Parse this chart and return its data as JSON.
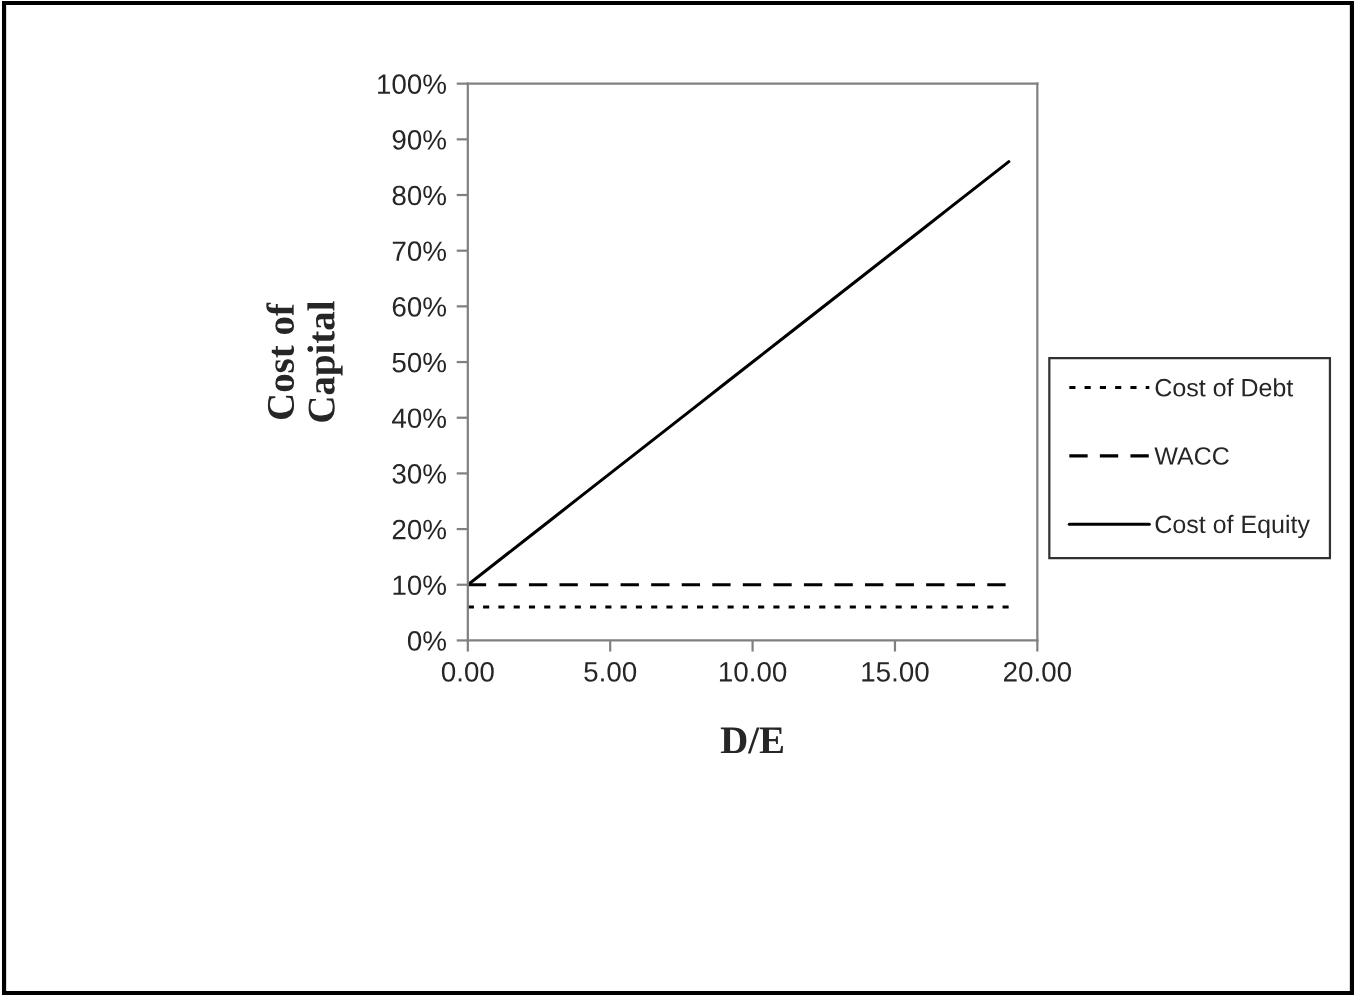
{
  "chart_data": {
    "type": "line",
    "xlabel": "D/E",
    "ylabel": "Cost of\nCapital",
    "xlim": [
      0,
      20
    ],
    "xticks": [
      {
        "value": 0,
        "label": "0.00"
      },
      {
        "value": 5,
        "label": "5.00"
      },
      {
        "value": 10,
        "label": "10.00"
      },
      {
        "value": 15,
        "label": "15.00"
      },
      {
        "value": 20,
        "label": "20.00"
      }
    ],
    "ylim": [
      0,
      100
    ],
    "yticks": [
      {
        "value": 0,
        "label": "0%"
      },
      {
        "value": 10,
        "label": "10%"
      },
      {
        "value": 20,
        "label": "20%"
      },
      {
        "value": 30,
        "label": "30%"
      },
      {
        "value": 40,
        "label": "40%"
      },
      {
        "value": 50,
        "label": "50%"
      },
      {
        "value": 60,
        "label": "60%"
      },
      {
        "value": 70,
        "label": "70%"
      },
      {
        "value": 80,
        "label": "80%"
      },
      {
        "value": 90,
        "label": "90%"
      },
      {
        "value": 100,
        "label": "100%"
      }
    ],
    "x": [
      0,
      1,
      2,
      3,
      4,
      5,
      6,
      7,
      8,
      9,
      10,
      11,
      12,
      13,
      14,
      15,
      16,
      17,
      18,
      19
    ],
    "series": [
      {
        "name": "Cost of Debt",
        "color": "#000000",
        "line_style": "dotted",
        "values": [
          6,
          6,
          6,
          6,
          6,
          6,
          6,
          6,
          6,
          6,
          6,
          6,
          6,
          6,
          6,
          6,
          6,
          6,
          6,
          6
        ]
      },
      {
        "name": "WACC",
        "color": "#000000",
        "line_style": "dashed",
        "values": [
          10,
          10,
          10,
          10,
          10,
          10,
          10,
          10,
          10,
          10,
          10,
          10,
          10,
          10,
          10,
          10,
          10,
          10,
          10,
          10
        ]
      },
      {
        "name": "Cost of Equity",
        "color": "#000000",
        "line_style": "solid",
        "values": [
          10,
          14,
          18,
          22,
          26,
          30,
          34,
          38,
          42,
          46,
          50,
          54,
          58,
          62,
          66,
          70,
          74,
          78,
          82,
          86
        ]
      }
    ],
    "legend": "right",
    "grid": false,
    "marker": "none"
  }
}
